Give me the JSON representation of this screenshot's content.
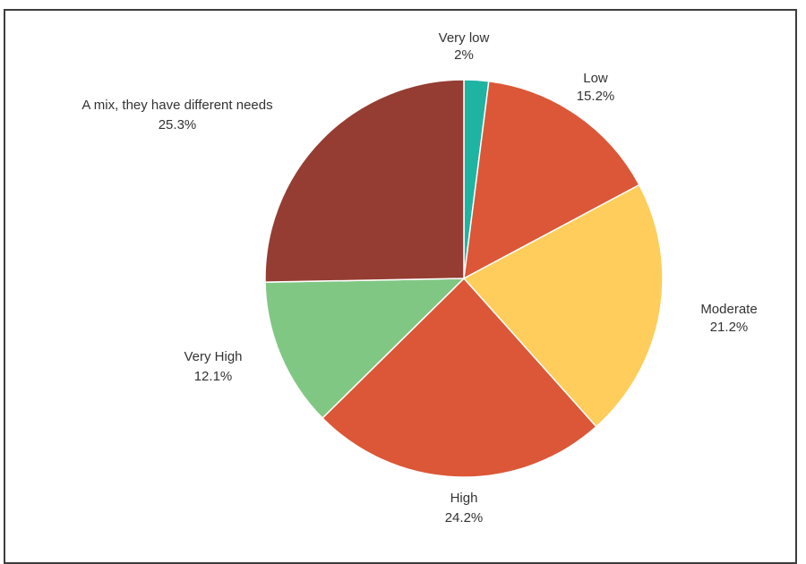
{
  "chart_data": {
    "type": "pie",
    "title": "",
    "start_angle_deg": 0,
    "direction": "clockwise",
    "slices": [
      {
        "label": "Very low",
        "value": 2,
        "value_label": "2%",
        "color": "#1fb3a2"
      },
      {
        "label": "Low",
        "value": 15.2,
        "value_label": "15.2%",
        "color": "#db5737"
      },
      {
        "label": "Moderate",
        "value": 21.2,
        "value_label": "21.2%",
        "color": "#fecd5b"
      },
      {
        "label": "High",
        "value": 24.2,
        "value_label": "24.2%",
        "color": "#db5737"
      },
      {
        "label": "Very High",
        "value": 12.1,
        "value_label": "12.1%",
        "color": "#81c784"
      },
      {
        "label": "A mix, they have different needs",
        "value": 25.3,
        "value_label": "25.3%",
        "color": "#953d32"
      }
    ]
  }
}
